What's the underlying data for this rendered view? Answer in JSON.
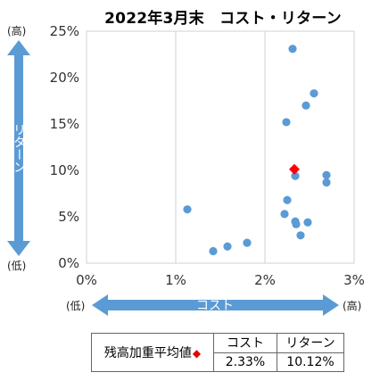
{
  "chart_data": {
    "type": "scatter",
    "title": "2022年3月末　コスト・リターン",
    "xlabel": "コスト",
    "ylabel": "リターン",
    "x_low": "(低)",
    "x_high": "(高)",
    "y_low": "(低)",
    "y_high": "(高)",
    "xlim": [
      0,
      3
    ],
    "ylim": [
      0,
      25
    ],
    "x_ticks": [
      "0%",
      "1%",
      "2%",
      "3%"
    ],
    "y_ticks": [
      "0%",
      "5%",
      "10%",
      "15%",
      "20%",
      "25%"
    ],
    "grid": "vertical",
    "series": [
      {
        "color": "#5b9bd5",
        "points": [
          {
            "x": 1.13,
            "y": 5.8
          },
          {
            "x": 1.42,
            "y": 1.3
          },
          {
            "x": 1.58,
            "y": 1.8
          },
          {
            "x": 1.8,
            "y": 2.2
          },
          {
            "x": 2.24,
            "y": 15.2
          },
          {
            "x": 2.22,
            "y": 5.3
          },
          {
            "x": 2.25,
            "y": 6.8
          },
          {
            "x": 2.31,
            "y": 23.1
          },
          {
            "x": 2.34,
            "y": 9.4
          },
          {
            "x": 2.34,
            "y": 4.5
          },
          {
            "x": 2.35,
            "y": 4.2
          },
          {
            "x": 2.4,
            "y": 3.0
          },
          {
            "x": 2.46,
            "y": 17.0
          },
          {
            "x": 2.48,
            "y": 4.4
          },
          {
            "x": 2.55,
            "y": 18.3
          },
          {
            "x": 2.69,
            "y": 9.5
          },
          {
            "x": 2.69,
            "y": 8.7
          }
        ]
      },
      {
        "color": "#ff0000",
        "marker": "diamond",
        "points": [
          {
            "x": 2.33,
            "y": 10.12
          }
        ]
      }
    ]
  },
  "summary": {
    "label": "残高加重平均値",
    "marker": "◆",
    "cost_header": "コスト",
    "return_header": "リターン",
    "cost_value": "2.33%",
    "return_value": "10.12%"
  }
}
